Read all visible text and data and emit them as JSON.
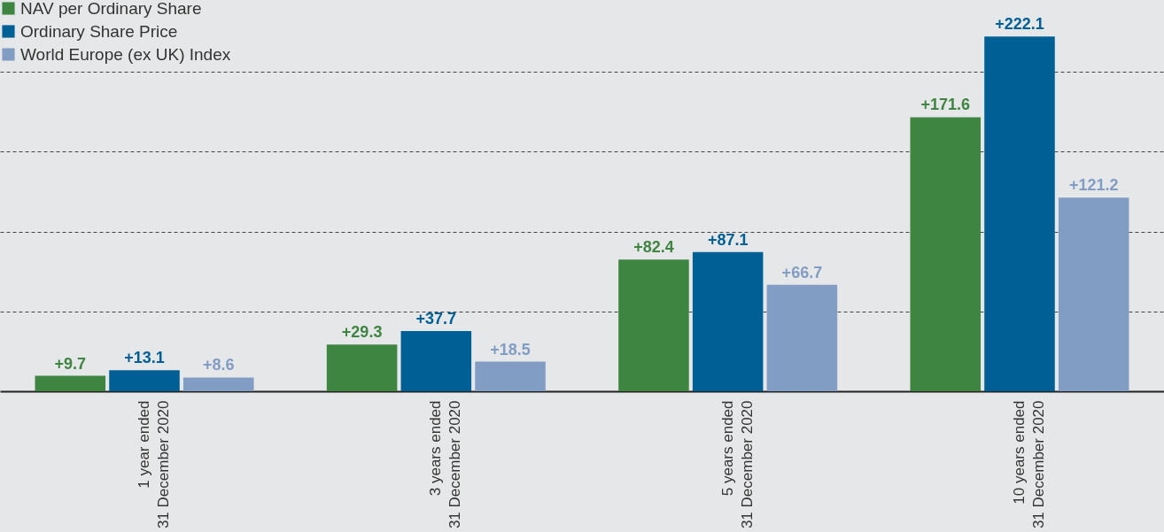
{
  "chart_data": {
    "type": "bar",
    "categories": [
      "1 year ended\n31 December 2020",
      "3 years ended\n31 December 2020",
      "5 years ended\n31 December 2020",
      "10 years ended\n31 December 2020"
    ],
    "series": [
      {
        "name": "NAV per Ordinary Share",
        "color": "#3d8540",
        "values": [
          9.7,
          29.3,
          82.4,
          171.6
        ],
        "value_labels": [
          "+9.7",
          "+29.3",
          "+82.4",
          "+171.6"
        ]
      },
      {
        "name": "Ordinary Share Price",
        "color": "#006096",
        "values": [
          13.1,
          37.7,
          87.1,
          222.1
        ],
        "value_labels": [
          "+13.1",
          "+37.7",
          "+87.1",
          "+222.1"
        ]
      },
      {
        "name": "World Europe (ex UK) Index",
        "color": "#829dc4",
        "values": [
          8.6,
          18.5,
          66.7,
          121.2
        ],
        "value_labels": [
          "+8.6",
          "+18.5",
          "+66.7",
          "+121.2"
        ]
      }
    ],
    "ylim": [
      0,
      245
    ],
    "yticks": [
      {
        "value": 50,
        "label": null
      },
      {
        "value": 100,
        "label": null
      },
      {
        "value": 150,
        "label": null
      },
      {
        "value": 200,
        "label": null
      }
    ],
    "grid": "y",
    "legend": "top left",
    "tick_labels": "x"
  }
}
